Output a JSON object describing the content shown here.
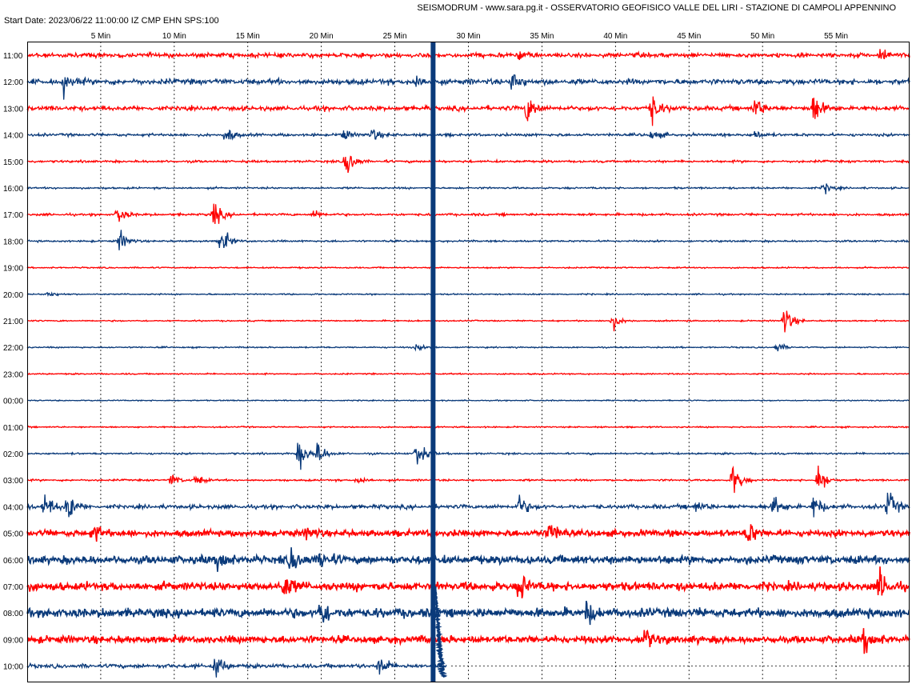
{
  "header": {
    "title": "SEISMODRUM - www.sara.pg.it - OSSERVATORIO GEOFISICO VALLE DEL LIRI - STAZIONE DI CAMPOLI APPENNINO",
    "start_date": "Start Date: 2023/06/22 11:00:00 IZ CMP EHN SPS:100"
  },
  "colors": {
    "red_trace": "#ff0000",
    "blue_trace": "#0a3a7a",
    "grid": "#000000",
    "frame": "#000000"
  },
  "chart_data": {
    "type": "line",
    "title": "",
    "xlabel": "",
    "ylabel": "",
    "xlim": [
      0,
      60
    ],
    "x_tick_values": [
      5,
      10,
      15,
      20,
      25,
      30,
      35,
      40,
      45,
      50,
      55
    ],
    "x_tick_labels": [
      "5 Min",
      "10 Min",
      "15 Min",
      "20 Min",
      "25 Min",
      "30 Min",
      "35 Min",
      "40 Min",
      "45 Min",
      "50 Min",
      "55 Min"
    ],
    "grid": "vertical dashed at every 5 minutes",
    "rows": [
      {
        "label": "11:00",
        "color": "red",
        "noise": 0.5,
        "events": [
          {
            "t": 33.5,
            "a": 0.4
          },
          {
            "t": 58.0,
            "a": 0.8
          }
        ]
      },
      {
        "label": "12:00",
        "color": "blue",
        "noise": 0.6,
        "events": [
          {
            "t": 2.5,
            "a": 0.9
          },
          {
            "t": 26.5,
            "a": 0.6
          },
          {
            "t": 33.0,
            "a": 1.0
          }
        ]
      },
      {
        "label": "13:00",
        "color": "red",
        "noise": 0.5,
        "events": [
          {
            "t": 34.0,
            "a": 1.4
          },
          {
            "t": 42.5,
            "a": 1.5
          },
          {
            "t": 49.5,
            "a": 1.0
          },
          {
            "t": 53.5,
            "a": 1.6
          }
        ]
      },
      {
        "label": "14:00",
        "color": "blue",
        "noise": 0.3,
        "events": [
          {
            "t": 13.5,
            "a": 0.8
          },
          {
            "t": 21.5,
            "a": 0.6
          },
          {
            "t": 23.5,
            "a": 0.6
          },
          {
            "t": 42.5,
            "a": 0.5
          },
          {
            "t": 49.5,
            "a": 0.4
          }
        ]
      },
      {
        "label": "15:00",
        "color": "red",
        "noise": 0.25,
        "events": [
          {
            "t": 21.7,
            "a": 1.6
          }
        ]
      },
      {
        "label": "16:00",
        "color": "blue",
        "noise": 0.2,
        "events": [
          {
            "t": 54.2,
            "a": 0.5
          }
        ]
      },
      {
        "label": "17:00",
        "color": "red",
        "noise": 0.25,
        "events": [
          {
            "t": 6.2,
            "a": 0.9
          },
          {
            "t": 12.7,
            "a": 1.2
          },
          {
            "t": 19.5,
            "a": 0.4
          }
        ]
      },
      {
        "label": "18:00",
        "color": "blue",
        "noise": 0.2,
        "events": [
          {
            "t": 6.3,
            "a": 1.0
          },
          {
            "t": 13.2,
            "a": 1.4
          }
        ]
      },
      {
        "label": "19:00",
        "color": "red",
        "noise": 0.15,
        "events": []
      },
      {
        "label": "20:00",
        "color": "blue",
        "noise": 0.15,
        "events": [
          {
            "t": 1.5,
            "a": 0.3
          }
        ]
      },
      {
        "label": "21:00",
        "color": "red",
        "noise": 0.15,
        "events": [
          {
            "t": 39.8,
            "a": 0.8
          },
          {
            "t": 51.5,
            "a": 1.4
          }
        ]
      },
      {
        "label": "22:00",
        "color": "blue",
        "noise": 0.15,
        "events": [
          {
            "t": 26.5,
            "a": 0.3
          },
          {
            "t": 51.0,
            "a": 0.5
          }
        ]
      },
      {
        "label": "23:00",
        "color": "red",
        "noise": 0.15,
        "events": []
      },
      {
        "label": "00:00",
        "color": "blue",
        "noise": 0.12,
        "events": []
      },
      {
        "label": "01:00",
        "color": "red",
        "noise": 0.15,
        "events": []
      },
      {
        "label": "02:00",
        "color": "blue",
        "noise": 0.2,
        "events": [
          {
            "t": 18.5,
            "a": 1.5
          },
          {
            "t": 19.8,
            "a": 1.1
          },
          {
            "t": 26.5,
            "a": 1.4
          }
        ]
      },
      {
        "label": "03:00",
        "color": "red",
        "noise": 0.2,
        "events": [
          {
            "t": 9.8,
            "a": 0.6
          },
          {
            "t": 11.5,
            "a": 0.5
          },
          {
            "t": 22.5,
            "a": 0.4
          },
          {
            "t": 48.0,
            "a": 1.6
          },
          {
            "t": 53.8,
            "a": 1.5
          }
        ]
      },
      {
        "label": "04:00",
        "color": "blue",
        "noise": 0.45,
        "events": [
          {
            "t": 1.2,
            "a": 1.3
          },
          {
            "t": 2.8,
            "a": 1.3
          },
          {
            "t": 33.5,
            "a": 1.0
          },
          {
            "t": 45.5,
            "a": 0.5
          },
          {
            "t": 50.8,
            "a": 1.0
          },
          {
            "t": 53.5,
            "a": 1.1
          },
          {
            "t": 58.5,
            "a": 1.5
          }
        ]
      },
      {
        "label": "05:00",
        "color": "red",
        "noise": 0.7,
        "events": [
          {
            "t": 4.5,
            "a": 0.8
          },
          {
            "t": 19.0,
            "a": 0.6
          },
          {
            "t": 35.5,
            "a": 1.2
          },
          {
            "t": 49.0,
            "a": 1.1
          }
        ]
      },
      {
        "label": "06:00",
        "color": "blue",
        "noise": 0.9,
        "events": [
          {
            "t": 13.0,
            "a": 1.2
          },
          {
            "t": 18.0,
            "a": 1.3
          },
          {
            "t": 20.0,
            "a": 0.8
          }
        ]
      },
      {
        "label": "07:00",
        "color": "red",
        "noise": 0.9,
        "events": [
          {
            "t": 17.5,
            "a": 1.2
          },
          {
            "t": 33.5,
            "a": 1.3
          },
          {
            "t": 58.0,
            "a": 1.3
          }
        ]
      },
      {
        "label": "08:00",
        "color": "blue",
        "noise": 1.0,
        "events": [
          {
            "t": 20.0,
            "a": 1.3
          },
          {
            "t": 38.0,
            "a": 1.0
          }
        ]
      },
      {
        "label": "09:00",
        "color": "red",
        "noise": 0.8,
        "events": [
          {
            "t": 42.0,
            "a": 1.1
          },
          {
            "t": 57.0,
            "a": 1.3
          }
        ]
      },
      {
        "label": "10:00",
        "color": "blue",
        "noise": 0.45,
        "events": [
          {
            "t": 12.8,
            "a": 1.2
          },
          {
            "t": 24.0,
            "a": 1.0
          }
        ],
        "end_t": 28.5
      }
    ],
    "major_event": {
      "t": 27.6,
      "row_start": 0,
      "row_end": 23,
      "color": "blue"
    }
  }
}
